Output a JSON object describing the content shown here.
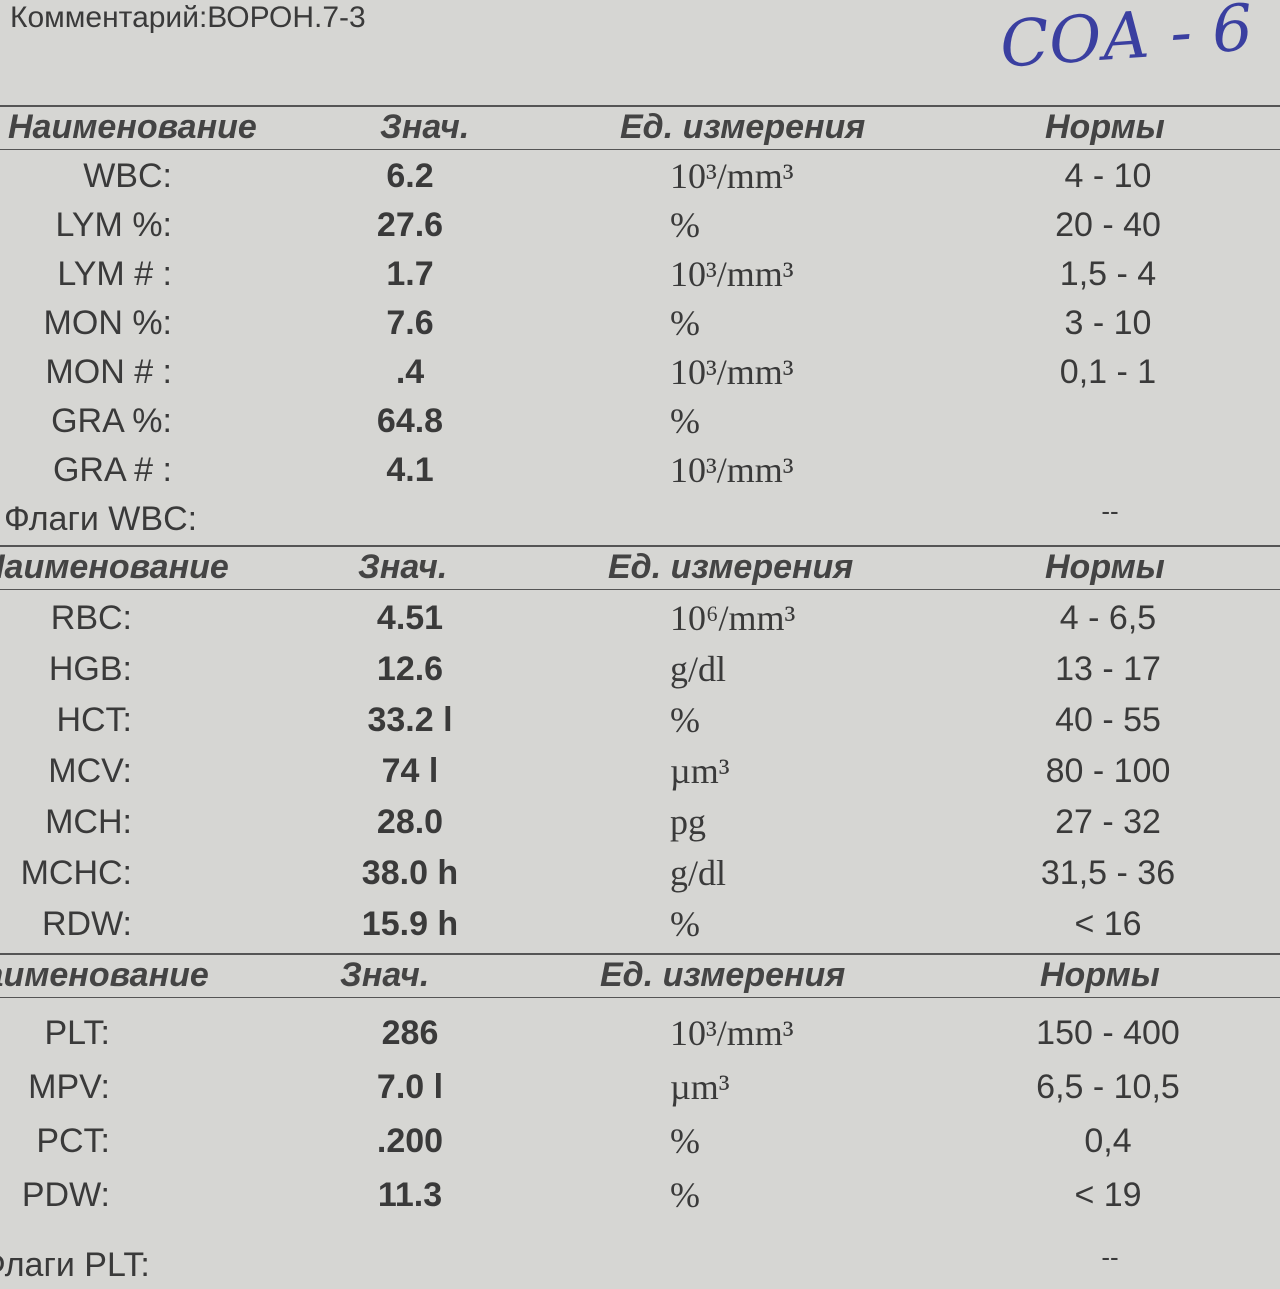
{
  "comment": "Комментарий:ВОРОН.7-3",
  "handwritten": "СОА - 6",
  "sections": [
    {
      "header": [
        "Наименование",
        "Знач.",
        "Ед. измерения",
        "Нормы"
      ],
      "rows": [
        {
          "name": "WBC:",
          "value": "6.2",
          "unit": "10³/mm³",
          "norm": "4 - 10"
        },
        {
          "name": "LYM %:",
          "value": "27.6",
          "unit": "%",
          "norm": "20 - 40"
        },
        {
          "name": "LYM # :",
          "value": "1.7",
          "unit": "10³/mm³",
          "norm": "1,5 - 4"
        },
        {
          "name": "MON %:",
          "value": "7.6",
          "unit": "%",
          "norm": "3 - 10"
        },
        {
          "name": "MON # :",
          "value": ".4",
          "unit": "10³/mm³",
          "norm": "0,1 - 1"
        },
        {
          "name": "GRA %:",
          "value": "64.8",
          "unit": "%"
        },
        {
          "name": "GRA # :",
          "value": "4.1",
          "unit": "10³/mm³"
        }
      ],
      "flags": {
        "label": "Флаги WBC:",
        "value": "--"
      }
    },
    {
      "header": [
        "Наименование",
        "Знач.",
        "Ед. измерения",
        "Нормы"
      ],
      "rows": [
        {
          "name": "RBC:",
          "value": "4.51",
          "unit": "10⁶/mm³",
          "norm": "4 - 6,5"
        },
        {
          "name": "HGB:",
          "value": "12.6",
          "unit": "g/dl",
          "norm": "13 - 17"
        },
        {
          "name": "HCT:",
          "value": "33.2 l",
          "unit": "%",
          "norm": "40 - 55"
        },
        {
          "name": "MCV:",
          "value": "74 l",
          "unit": "µm³",
          "norm": "80 - 100"
        },
        {
          "name": "MCH:",
          "value": "28.0",
          "unit": "pg",
          "norm": "27 - 32"
        },
        {
          "name": "MCHC:",
          "value": "38.0 h",
          "unit": "g/dl",
          "norm": "31,5 - 36"
        },
        {
          "name": "RDW:",
          "value": "15.9 h",
          "unit": "%",
          "norm": "< 16"
        }
      ]
    },
    {
      "header": [
        "Наименование",
        "Знач.",
        "Ед. измерения",
        "Нормы"
      ],
      "rows": [
        {
          "name": "PLT:",
          "value": "286",
          "unit": "10³/mm³",
          "norm": "150 - 400"
        },
        {
          "name": "MPV:",
          "value": "7.0 l",
          "unit": "µm³",
          "norm": "6,5 - 10,5"
        },
        {
          "name": "PCT:",
          "value": ".200",
          "unit": "%",
          "norm": "0,4"
        },
        {
          "name": "PDW:",
          "value": "11.3",
          "unit": "%",
          "norm": "< 19"
        }
      ],
      "flags": {
        "label": "Флаги PLT:",
        "value": "--"
      }
    }
  ]
}
